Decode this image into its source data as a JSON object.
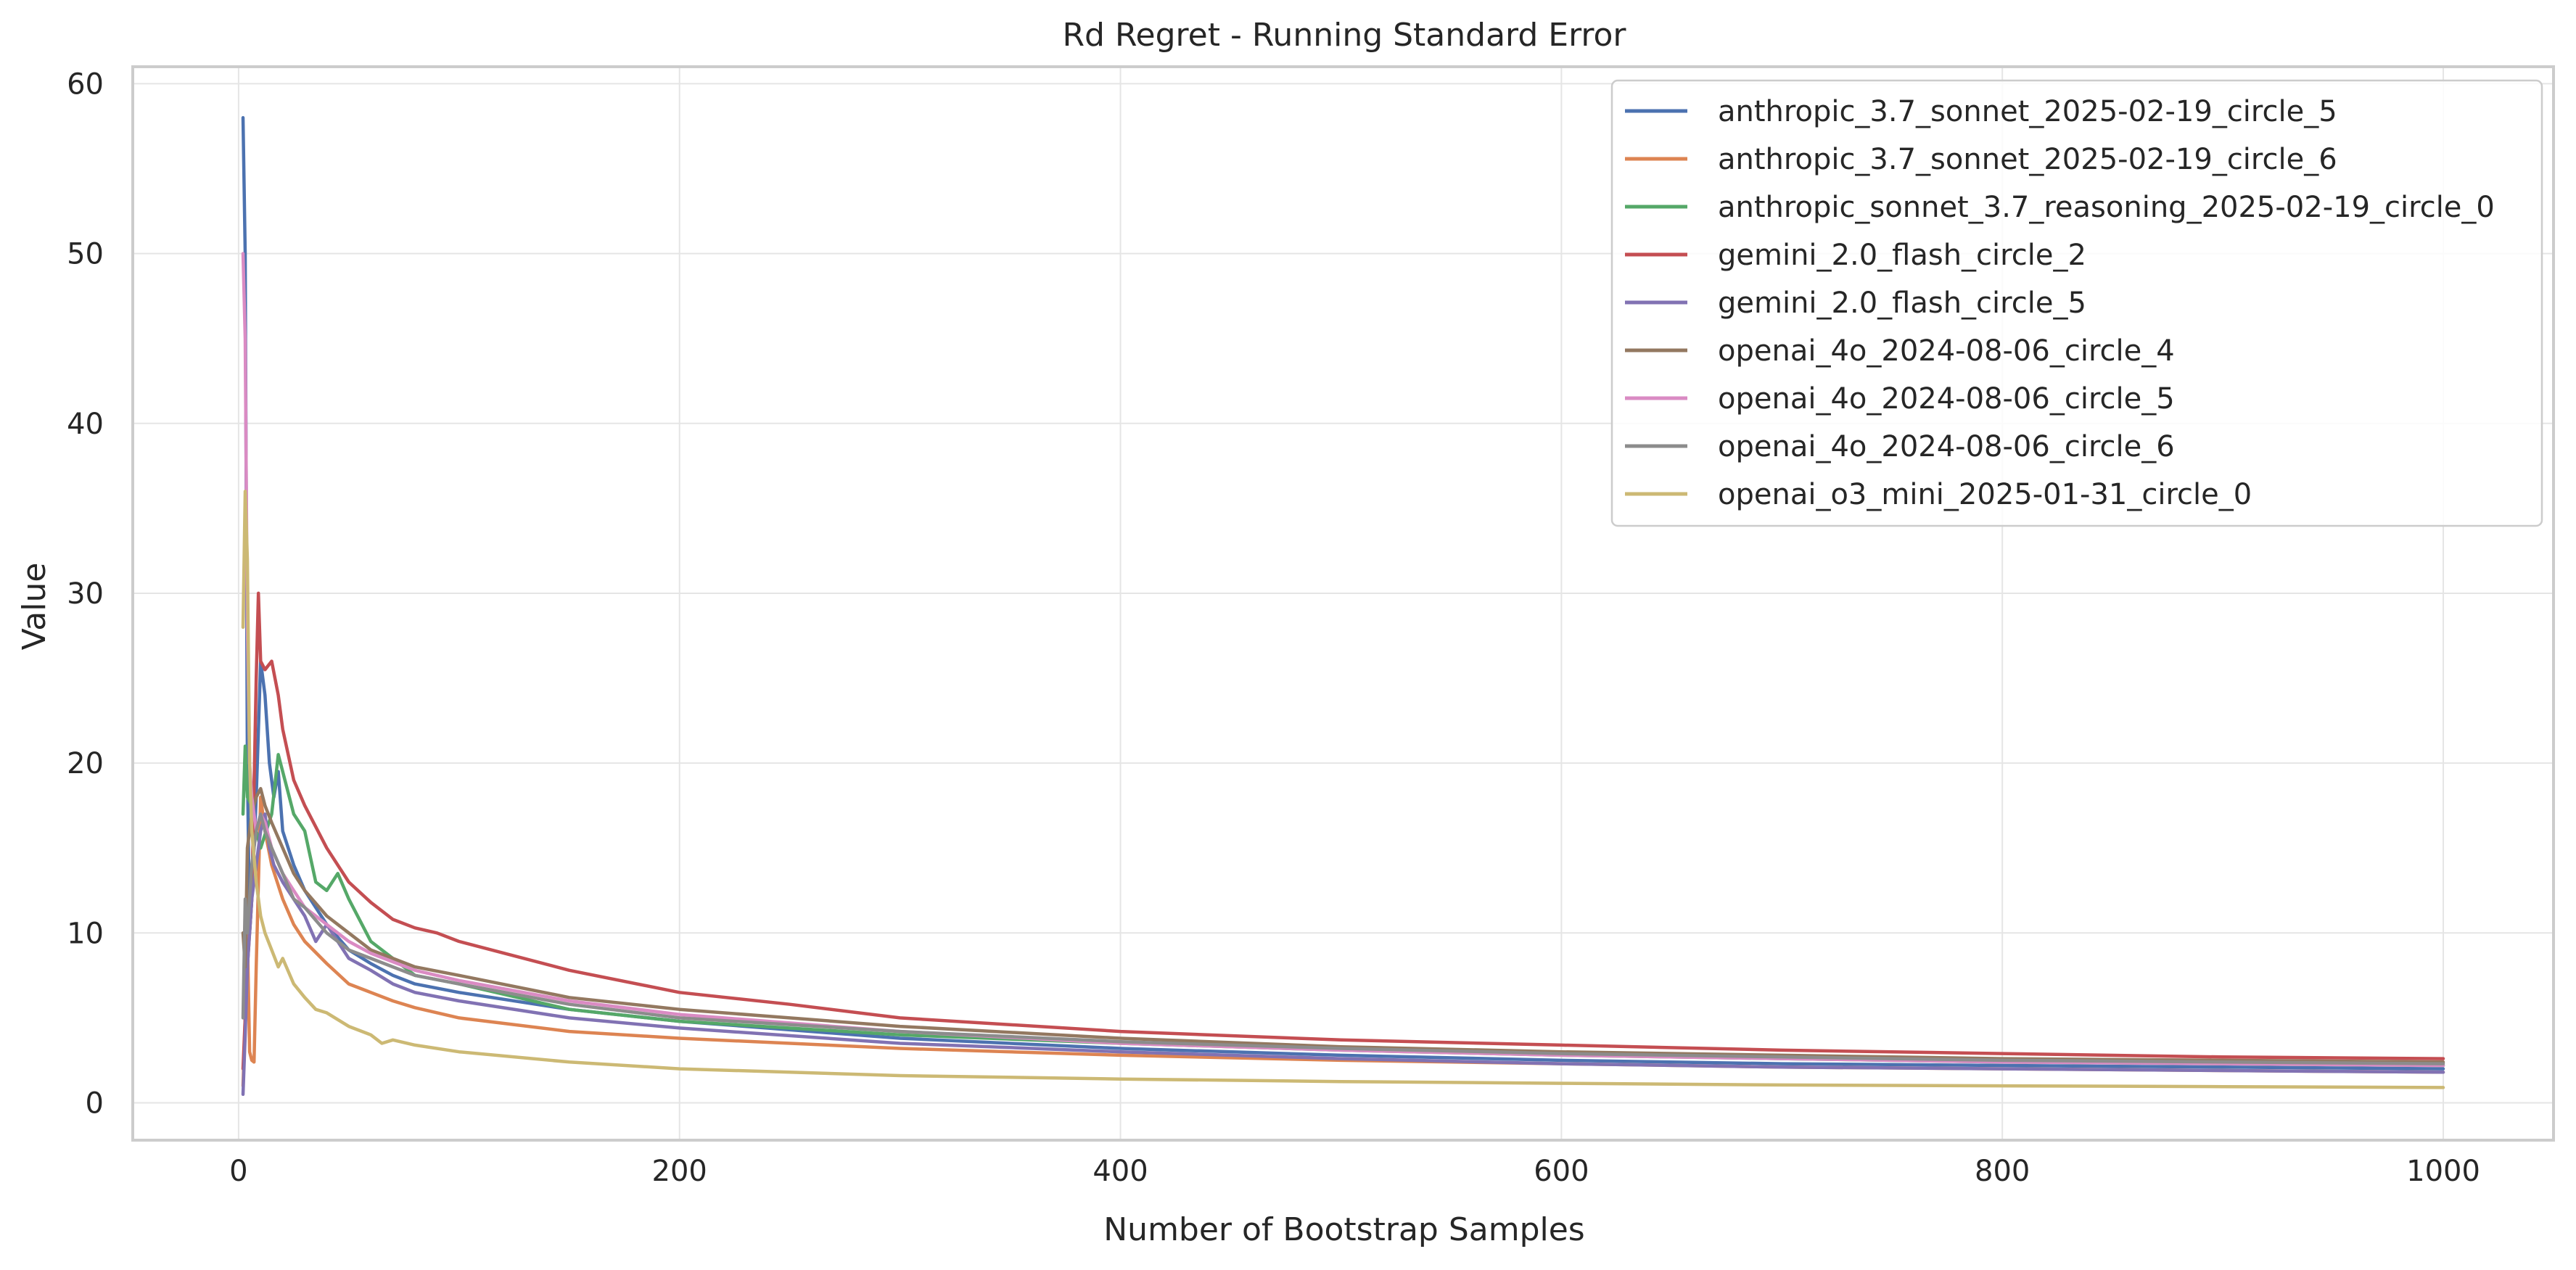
{
  "chart_data": {
    "type": "line",
    "title": "Rd Regret - Running Standard Error",
    "xlabel": "Number of Bootstrap Samples",
    "ylabel": "Value",
    "xlim": [
      -48,
      1050
    ],
    "ylim": [
      -2.2,
      61
    ],
    "xticks": [
      0,
      200,
      400,
      600,
      800,
      1000
    ],
    "yticks": [
      0,
      10,
      20,
      30,
      40,
      50,
      60
    ],
    "grid": true,
    "legend_position": "top-right",
    "series": [
      {
        "name": "anthropic_3.7_sonnet_2025-02-19_circle_5",
        "color": "#4c72b0",
        "points": [
          [
            2,
            58.0
          ],
          [
            3,
            50.0
          ],
          [
            4,
            20.0
          ],
          [
            5,
            10.0
          ],
          [
            6,
            12.0
          ],
          [
            8,
            18.0
          ],
          [
            10,
            26.0
          ],
          [
            12,
            24.0
          ],
          [
            14,
            20.0
          ],
          [
            16,
            18.0
          ],
          [
            18,
            19.5
          ],
          [
            20,
            16.0
          ],
          [
            25,
            14.0
          ],
          [
            30,
            12.5
          ],
          [
            40,
            10.5
          ],
          [
            50,
            9.0
          ],
          [
            60,
            8.2
          ],
          [
            70,
            7.5
          ],
          [
            80,
            7.0
          ],
          [
            100,
            6.5
          ],
          [
            150,
            5.5
          ],
          [
            200,
            4.8
          ],
          [
            300,
            3.8
          ],
          [
            400,
            3.2
          ],
          [
            500,
            2.8
          ],
          [
            600,
            2.5
          ],
          [
            700,
            2.3
          ],
          [
            800,
            2.2
          ],
          [
            900,
            2.1
          ],
          [
            1000,
            2.0
          ]
        ]
      },
      {
        "name": "anthropic_3.7_sonnet_2025-02-19_circle_6",
        "color": "#dd8452",
        "points": [
          [
            2,
            1.0
          ],
          [
            3,
            5.0
          ],
          [
            4,
            10.0
          ],
          [
            5,
            3.0
          ],
          [
            6,
            2.5
          ],
          [
            7,
            2.4
          ],
          [
            8,
            8.0
          ],
          [
            10,
            18.0
          ],
          [
            12,
            16.0
          ],
          [
            15,
            14.0
          ],
          [
            20,
            12.0
          ],
          [
            25,
            10.5
          ],
          [
            30,
            9.5
          ],
          [
            40,
            8.2
          ],
          [
            50,
            7.0
          ],
          [
            60,
            6.5
          ],
          [
            70,
            6.0
          ],
          [
            80,
            5.6
          ],
          [
            100,
            5.0
          ],
          [
            150,
            4.2
          ],
          [
            200,
            3.8
          ],
          [
            300,
            3.2
          ],
          [
            400,
            2.8
          ],
          [
            500,
            2.5
          ],
          [
            600,
            2.3
          ],
          [
            700,
            2.1
          ],
          [
            800,
            2.0
          ],
          [
            900,
            1.9
          ],
          [
            1000,
            1.8
          ]
        ]
      },
      {
        "name": "anthropic_sonnet_3.7_reasoning_2025-02-19_circle_0",
        "color": "#55a868",
        "points": [
          [
            2,
            17.0
          ],
          [
            3,
            21.0
          ],
          [
            4,
            18.0
          ],
          [
            6,
            17.5
          ],
          [
            8,
            16.0
          ],
          [
            10,
            15.0
          ],
          [
            15,
            17.0
          ],
          [
            18,
            20.5
          ],
          [
            20,
            19.5
          ],
          [
            25,
            17.0
          ],
          [
            30,
            16.0
          ],
          [
            35,
            13.0
          ],
          [
            40,
            12.5
          ],
          [
            45,
            13.5
          ],
          [
            50,
            12.0
          ],
          [
            60,
            9.5
          ],
          [
            70,
            8.5
          ],
          [
            80,
            7.5
          ],
          [
            100,
            7.0
          ],
          [
            150,
            5.5
          ],
          [
            200,
            4.8
          ],
          [
            300,
            4.0
          ],
          [
            400,
            3.5
          ],
          [
            500,
            3.1
          ],
          [
            600,
            2.8
          ],
          [
            700,
            2.6
          ],
          [
            800,
            2.4
          ],
          [
            900,
            2.3
          ],
          [
            1000,
            2.2
          ]
        ]
      },
      {
        "name": "gemini_2.0_flash_circle_2",
        "color": "#c44e52",
        "points": [
          [
            2,
            2.0
          ],
          [
            4,
            8.0
          ],
          [
            6,
            12.0
          ],
          [
            8,
            25.0
          ],
          [
            9,
            30.0
          ],
          [
            10,
            26.0
          ],
          [
            12,
            25.5
          ],
          [
            15,
            26.0
          ],
          [
            18,
            24.0
          ],
          [
            20,
            22.0
          ],
          [
            25,
            19.0
          ],
          [
            30,
            17.5
          ],
          [
            40,
            15.0
          ],
          [
            50,
            13.0
          ],
          [
            60,
            11.8
          ],
          [
            70,
            10.8
          ],
          [
            80,
            10.3
          ],
          [
            90,
            10.0
          ],
          [
            100,
            9.5
          ],
          [
            150,
            7.8
          ],
          [
            200,
            6.5
          ],
          [
            250,
            5.8
          ],
          [
            300,
            5.0
          ],
          [
            400,
            4.2
          ],
          [
            500,
            3.7
          ],
          [
            600,
            3.4
          ],
          [
            700,
            3.1
          ],
          [
            800,
            2.9
          ],
          [
            900,
            2.7
          ],
          [
            1000,
            2.6
          ]
        ]
      },
      {
        "name": "gemini_2.0_flash_circle_5",
        "color": "#8172b3",
        "points": [
          [
            2,
            0.5
          ],
          [
            3,
            4.0
          ],
          [
            4,
            8.0
          ],
          [
            6,
            12.0
          ],
          [
            8,
            14.0
          ],
          [
            10,
            16.0
          ],
          [
            12,
            17.0
          ],
          [
            14,
            15.0
          ],
          [
            16,
            14.0
          ],
          [
            20,
            13.0
          ],
          [
            25,
            12.0
          ],
          [
            30,
            11.0
          ],
          [
            35,
            9.5
          ],
          [
            40,
            10.5
          ],
          [
            50,
            8.5
          ],
          [
            60,
            7.8
          ],
          [
            70,
            7.0
          ],
          [
            80,
            6.5
          ],
          [
            100,
            6.0
          ],
          [
            150,
            5.0
          ],
          [
            200,
            4.4
          ],
          [
            300,
            3.5
          ],
          [
            400,
            3.0
          ],
          [
            500,
            2.6
          ],
          [
            600,
            2.3
          ],
          [
            700,
            2.1
          ],
          [
            800,
            2.0
          ],
          [
            900,
            1.9
          ],
          [
            1000,
            1.8
          ]
        ]
      },
      {
        "name": "openai_4o_2024-08-06_circle_4",
        "color": "#937860",
        "points": [
          [
            2,
            10.0
          ],
          [
            3,
            8.0
          ],
          [
            4,
            15.0
          ],
          [
            6,
            17.0
          ],
          [
            8,
            18.0
          ],
          [
            10,
            18.5
          ],
          [
            12,
            17.5
          ],
          [
            15,
            16.5
          ],
          [
            20,
            15.0
          ],
          [
            25,
            13.5
          ],
          [
            30,
            12.5
          ],
          [
            40,
            11.0
          ],
          [
            50,
            10.0
          ],
          [
            60,
            9.0
          ],
          [
            70,
            8.5
          ],
          [
            80,
            8.0
          ],
          [
            100,
            7.5
          ],
          [
            150,
            6.2
          ],
          [
            200,
            5.5
          ],
          [
            300,
            4.5
          ],
          [
            400,
            3.8
          ],
          [
            500,
            3.3
          ],
          [
            600,
            3.0
          ],
          [
            700,
            2.8
          ],
          [
            800,
            2.6
          ],
          [
            900,
            2.5
          ],
          [
            1000,
            2.4
          ]
        ]
      },
      {
        "name": "openai_4o_2024-08-06_circle_5",
        "color": "#da8bc3",
        "points": [
          [
            2,
            50.0
          ],
          [
            3,
            45.0
          ],
          [
            4,
            28.0
          ],
          [
            5,
            20.0
          ],
          [
            6,
            18.0
          ],
          [
            8,
            16.0
          ],
          [
            10,
            17.0
          ],
          [
            12,
            16.5
          ],
          [
            15,
            15.0
          ],
          [
            20,
            13.5
          ],
          [
            25,
            12.5
          ],
          [
            30,
            11.5
          ],
          [
            40,
            10.5
          ],
          [
            50,
            9.5
          ],
          [
            60,
            8.8
          ],
          [
            70,
            8.3
          ],
          [
            80,
            7.8
          ],
          [
            100,
            7.2
          ],
          [
            150,
            6.0
          ],
          [
            200,
            5.2
          ],
          [
            300,
            4.2
          ],
          [
            400,
            3.5
          ],
          [
            500,
            3.1
          ],
          [
            600,
            2.8
          ],
          [
            700,
            2.6
          ],
          [
            800,
            2.4
          ],
          [
            900,
            2.3
          ],
          [
            1000,
            2.2
          ]
        ]
      },
      {
        "name": "openai_4o_2024-08-06_circle_6",
        "color": "#8c8c8c",
        "points": [
          [
            2,
            5.0
          ],
          [
            3,
            12.0
          ],
          [
            4,
            10.0
          ],
          [
            6,
            14.0
          ],
          [
            8,
            16.0
          ],
          [
            10,
            17.0
          ],
          [
            12,
            16.0
          ],
          [
            15,
            15.0
          ],
          [
            20,
            13.5
          ],
          [
            25,
            12.0
          ],
          [
            30,
            11.5
          ],
          [
            40,
            10.0
          ],
          [
            50,
            9.0
          ],
          [
            60,
            8.5
          ],
          [
            70,
            8.0
          ],
          [
            80,
            7.5
          ],
          [
            100,
            7.0
          ],
          [
            150,
            5.8
          ],
          [
            200,
            5.0
          ],
          [
            300,
            4.2
          ],
          [
            400,
            3.6
          ],
          [
            500,
            3.2
          ],
          [
            600,
            2.9
          ],
          [
            700,
            2.7
          ],
          [
            800,
            2.5
          ],
          [
            900,
            2.4
          ],
          [
            1000,
            2.3
          ]
        ]
      },
      {
        "name": "openai_o3_mini_2025-01-31_circle_0",
        "color": "#ccb974",
        "points": [
          [
            2,
            28.0
          ],
          [
            3,
            36.0
          ],
          [
            4,
            32.0
          ],
          [
            5,
            20.0
          ],
          [
            6,
            16.0
          ],
          [
            8,
            13.0
          ],
          [
            10,
            11.0
          ],
          [
            12,
            10.0
          ],
          [
            15,
            9.0
          ],
          [
            18,
            8.0
          ],
          [
            20,
            8.5
          ],
          [
            25,
            7.0
          ],
          [
            30,
            6.2
          ],
          [
            35,
            5.5
          ],
          [
            40,
            5.3
          ],
          [
            50,
            4.5
          ],
          [
            60,
            4.0
          ],
          [
            65,
            3.5
          ],
          [
            70,
            3.7
          ],
          [
            80,
            3.4
          ],
          [
            100,
            3.0
          ],
          [
            150,
            2.4
          ],
          [
            200,
            2.0
          ],
          [
            250,
            1.8
          ],
          [
            300,
            1.6
          ],
          [
            400,
            1.4
          ],
          [
            500,
            1.25
          ],
          [
            600,
            1.15
          ],
          [
            700,
            1.05
          ],
          [
            800,
            1.0
          ],
          [
            900,
            0.95
          ],
          [
            1000,
            0.9
          ]
        ]
      }
    ]
  }
}
